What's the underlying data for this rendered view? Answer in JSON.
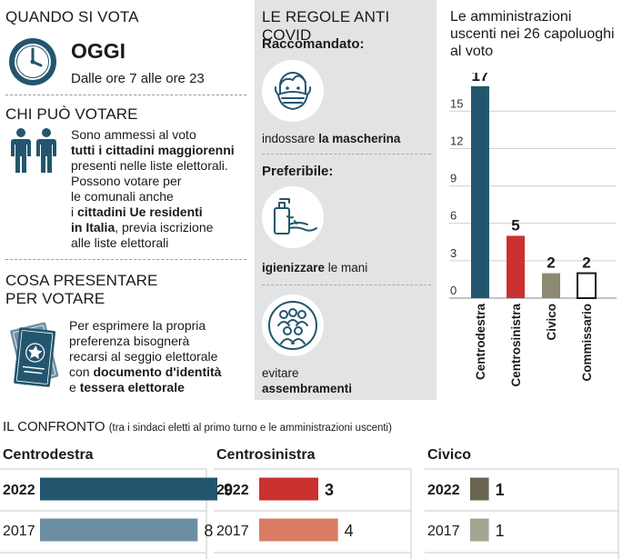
{
  "left": {
    "when": {
      "heading": "QUANDO SI VOTA",
      "big": "OGGI",
      "hours": "Dalle ore 7 alle ore 23"
    },
    "who": {
      "heading": "CHI PUÒ VOTARE",
      "l1": "Sono ammessi al voto",
      "l2": "tutti  i cittadini maggiorenni",
      "l3": "presenti nelle liste elettorali.",
      "l4": "Possono votare per",
      "l5": "le comunali anche",
      "l6a": "i ",
      "l6b": "cittadini Ue residenti",
      "l7a": "in Italia",
      "l7b": ", previa iscrizione",
      "l8": "alle liste elettorali"
    },
    "bring": {
      "heading1": "COSA PRESENTARE",
      "heading2": "PER VOTARE",
      "l1": "Per esprimere la propria",
      "l2": "preferenza bisognerà",
      "l3": "recarsi al seggio elettorale",
      "l4a": "con ",
      "l4b": "documento d'identità",
      "l5a": "e ",
      "l5b": "tessera elettorale"
    }
  },
  "covid": {
    "heading": "LE REGOLE ANTI COVID",
    "recommended": "Raccomandato:",
    "mask_a": "indossare ",
    "mask_b": "la mascherina",
    "preferable": "Preferibile:",
    "sanitize_a": "igienizzare",
    "sanitize_b": " le mani",
    "crowd_a": "evitare",
    "crowd_b": "assembramenti"
  },
  "chart_data": [
    {
      "type": "bar",
      "title": "Le amministrazioni uscenti nei 26 capoluoghi al voto",
      "categories": [
        "Centrodestra",
        "Centrosinistra",
        "Civico",
        "Commissario"
      ],
      "values": [
        17,
        5,
        2,
        2
      ],
      "data_labels": [
        "17",
        "5",
        "2",
        "2"
      ],
      "colors": [
        "#23566e",
        "#c9322f",
        "#8c8a72",
        "#ffffff"
      ],
      "yticks": [
        0,
        3,
        6,
        9,
        12,
        15
      ],
      "ylim": [
        0,
        17.5
      ],
      "grid": true
    },
    {
      "type": "bar",
      "title": "IL CONFRONTO",
      "subtitle": "(tra i sindaci eletti al primo turno e le amministrazioni uscenti)",
      "categories": [
        "2022",
        "2017"
      ],
      "series": [
        {
          "name": "Centrodestra",
          "values": [
            9,
            8
          ],
          "colors": [
            "#23566e",
            "#6d8fa4"
          ]
        },
        {
          "name": "Centrosinistra",
          "values": [
            3,
            4
          ],
          "colors": [
            "#c9322f",
            "#d97d64"
          ]
        },
        {
          "name": "Civico",
          "values": [
            1,
            1
          ],
          "colors": [
            "#6b6550",
            "#a6a592"
          ]
        }
      ],
      "xlim": [
        0,
        9
      ]
    }
  ]
}
